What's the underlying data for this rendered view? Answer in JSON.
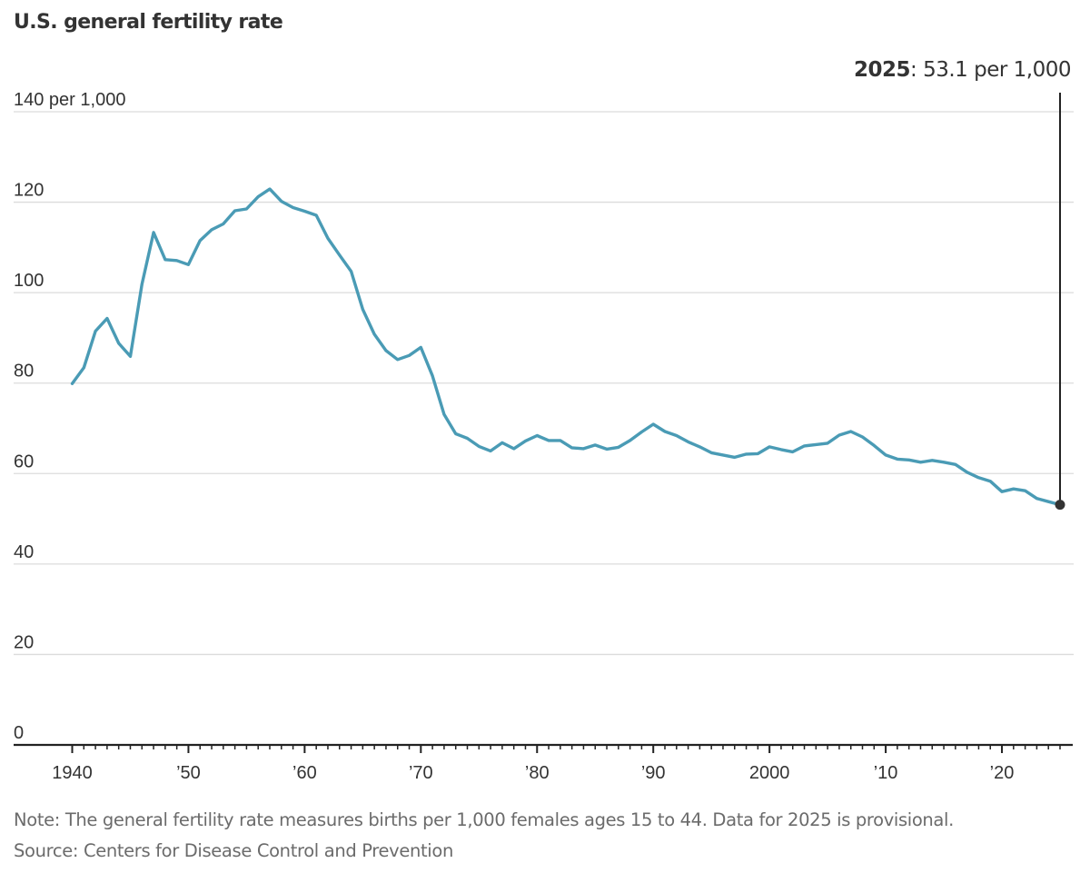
{
  "chart_data": {
    "type": "line",
    "title": "U.S. general fertility rate",
    "xlabel": "",
    "ylabel": "",
    "ylim": [
      0,
      140
    ],
    "xlim": [
      1940,
      2025
    ],
    "grid": true,
    "y_ticks": [
      {
        "value": 0,
        "label": "0"
      },
      {
        "value": 20,
        "label": "20"
      },
      {
        "value": 40,
        "label": "40"
      },
      {
        "value": 60,
        "label": "60"
      },
      {
        "value": 80,
        "label": "80"
      },
      {
        "value": 100,
        "label": "100"
      },
      {
        "value": 120,
        "label": "120"
      },
      {
        "value": 140,
        "label": "140 per 1,000"
      }
    ],
    "x_ticks": [
      {
        "value": 1940,
        "label": "1940"
      },
      {
        "value": 1950,
        "label": "’50"
      },
      {
        "value": 1960,
        "label": "’60"
      },
      {
        "value": 1970,
        "label": "’70"
      },
      {
        "value": 1980,
        "label": "’80"
      },
      {
        "value": 1990,
        "label": "’90"
      },
      {
        "value": 2000,
        "label": "2000"
      },
      {
        "value": 2010,
        "label": "’10"
      },
      {
        "value": 2020,
        "label": "’20"
      }
    ],
    "series": [
      {
        "name": "General fertility rate",
        "color": "#4a9bb5",
        "x": [
          1940,
          1941,
          1942,
          1943,
          1944,
          1945,
          1946,
          1947,
          1948,
          1949,
          1950,
          1951,
          1952,
          1953,
          1954,
          1955,
          1956,
          1957,
          1958,
          1959,
          1960,
          1961,
          1962,
          1963,
          1964,
          1965,
          1966,
          1967,
          1968,
          1969,
          1970,
          1971,
          1972,
          1973,
          1974,
          1975,
          1976,
          1977,
          1978,
          1979,
          1980,
          1981,
          1982,
          1983,
          1984,
          1985,
          1986,
          1987,
          1988,
          1989,
          1990,
          1991,
          1992,
          1993,
          1994,
          1995,
          1996,
          1997,
          1998,
          1999,
          2000,
          2001,
          2002,
          2003,
          2004,
          2005,
          2006,
          2007,
          2008,
          2009,
          2010,
          2011,
          2012,
          2013,
          2014,
          2015,
          2016,
          2017,
          2018,
          2019,
          2020,
          2021,
          2022,
          2023,
          2024,
          2025
        ],
        "values": [
          79.9,
          83.4,
          91.5,
          94.3,
          88.8,
          85.9,
          101.9,
          113.3,
          107.3,
          107.1,
          106.2,
          111.5,
          113.9,
          115.2,
          118.1,
          118.5,
          121.2,
          122.9,
          120.2,
          118.8,
          118.0,
          117.1,
          112.0,
          108.3,
          104.7,
          96.3,
          90.8,
          87.2,
          85.2,
          86.1,
          87.9,
          81.6,
          73.1,
          68.8,
          67.8,
          66.0,
          65.0,
          66.8,
          65.5,
          67.2,
          68.4,
          67.3,
          67.3,
          65.7,
          65.5,
          66.3,
          65.4,
          65.8,
          67.3,
          69.2,
          70.9,
          69.3,
          68.4,
          67.0,
          65.9,
          64.6,
          64.1,
          63.6,
          64.3,
          64.4,
          65.9,
          65.3,
          64.8,
          66.1,
          66.4,
          66.7,
          68.5,
          69.3,
          68.1,
          66.2,
          64.1,
          63.2,
          63.0,
          62.5,
          62.9,
          62.5,
          62.0,
          60.3,
          59.1,
          58.3,
          56.0,
          56.6,
          56.2,
          54.5,
          53.8,
          53.1
        ]
      }
    ],
    "annotation": {
      "year": 2025,
      "value": 53.1,
      "year_label": "2025",
      "value_label": ": 53.1 per 1,000",
      "marker_color": "#333333"
    },
    "note": "Note: The general fertility rate measures births per 1,000 females ages 15 to 44. Data for 2025 is provisional.",
    "source": "Source: Centers for Disease Control and Prevention"
  }
}
